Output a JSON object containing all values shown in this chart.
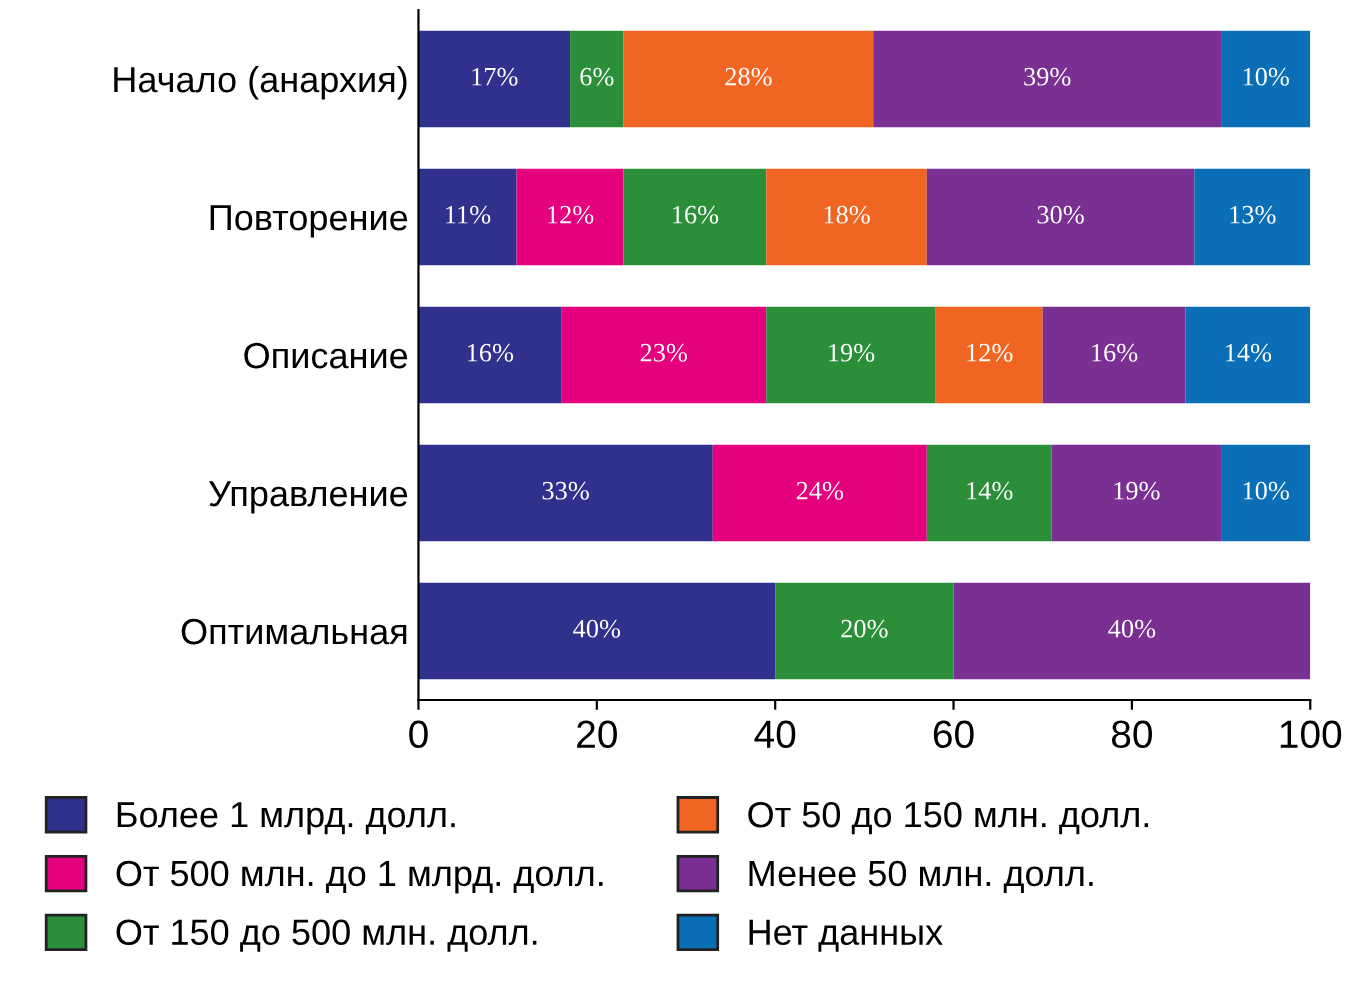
{
  "chart_data": {
    "type": "bar",
    "orientation": "horizontal",
    "stacked": true,
    "categories": [
      "Начало (анархия)",
      "Повторение",
      "Описание",
      "Управление",
      "Оптимальная"
    ],
    "series": [
      {
        "name": "Более 1 млрд. долл.",
        "color": "#30318d",
        "values": [
          17,
          11,
          16,
          33,
          40
        ],
        "value_labels": [
          "17%",
          "11%",
          "16%",
          "33%",
          "40%"
        ]
      },
      {
        "name": "От 500 млн. до 1 млрд. долл.",
        "color": "#e5007d",
        "values": [
          null,
          12,
          23,
          24,
          null
        ],
        "value_labels": [
          null,
          "12%",
          "23%",
          "24%",
          null
        ]
      },
      {
        "name": "От 150 до 500 млн. долл.",
        "color": "#2b8f3a",
        "values": [
          6,
          16,
          19,
          14,
          20
        ],
        "value_labels": [
          "6%",
          "16%",
          "19%",
          "14%",
          "20%"
        ]
      },
      {
        "name": "От 50 до 150 млн. долл.",
        "color": "#f06522",
        "values": [
          28,
          18,
          12,
          null,
          null
        ],
        "value_labels": [
          "28%",
          "18%",
          "12%",
          null,
          null
        ]
      },
      {
        "name": "Менее 50 млн. долл.",
        "color": "#7a2f93",
        "values": [
          39,
          30,
          16,
          19,
          40
        ],
        "value_labels": [
          "39%",
          "30%",
          "16%",
          "19%",
          "40%"
        ]
      },
      {
        "name": "Нет данных",
        "color": "#0a6fb7",
        "values": [
          10,
          13,
          14,
          10,
          null
        ],
        "value_labels": [
          "10%",
          "13%",
          "14%",
          "10%",
          null
        ]
      }
    ],
    "xlim": [
      0,
      100
    ],
    "xticks": [
      0,
      20,
      40,
      60,
      80,
      100
    ],
    "grid": false,
    "legend": "bottom"
  }
}
